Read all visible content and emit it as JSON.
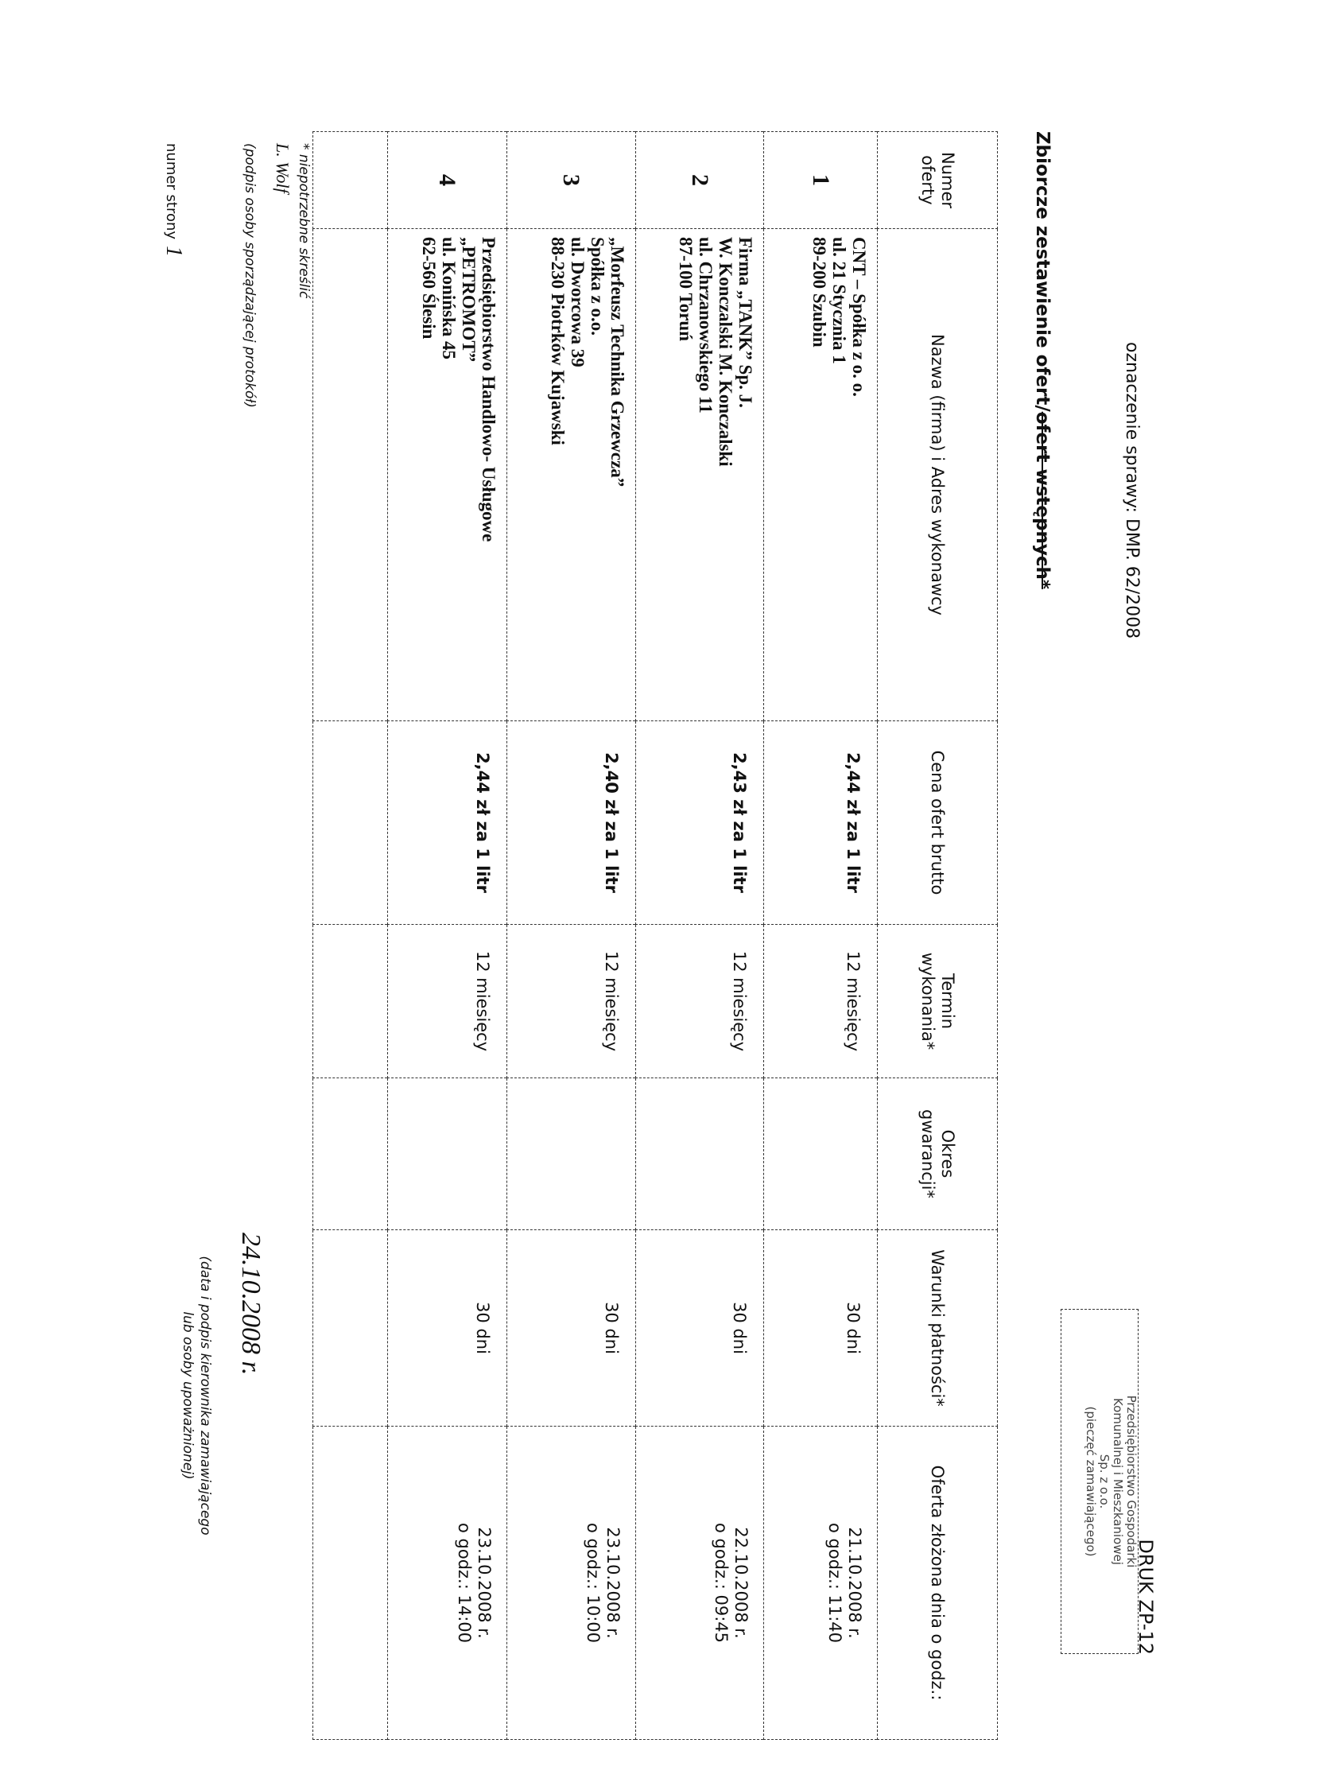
{
  "header": {
    "case_label": "oznaczenie sprawy: DMP. 62/2008",
    "title_main": "Zbiorcze zestawienie ofert/",
    "title_struck": "ofert wstępnych*",
    "stamp": {
      "form": "DRUK ZP-12",
      "line1": "Przedsiębiorstwo Gospodarki",
      "line2": "Komunalnej i Mieszkaniowej",
      "line3": "Sp. z o.o.",
      "line4": "(pieczęć zamawiającego)"
    }
  },
  "table": {
    "headers": [
      "Numer oferty",
      "Nazwa (firma) i Adres wykonawcy",
      "Cena ofert brutto",
      "Termin wykonania*",
      "Okres gwarancji*",
      "Warunki płatności*",
      "Oferta złożona dnia o godz.:"
    ],
    "rows": [
      {
        "num": "1",
        "name": [
          "CNT – Spółka z o. o.",
          "ul. 21 Stycznia 1",
          "89-200 Szubin"
        ],
        "price": "2,44 zł za 1 litr",
        "term": "12 miesięcy",
        "warranty": "",
        "payment": "30 dni",
        "date": "21.10.2008 r.",
        "time": "o godz.: 11:40"
      },
      {
        "num": "2",
        "name": [
          "Firma „TANK” Sp. J.",
          "W. Konczalski M. Konczalski",
          "ul. Chrzanowskiego 11",
          "87-100 Toruń"
        ],
        "price": "2,43 zł za 1 litr",
        "term": "12 miesięcy",
        "warranty": "",
        "payment": "30 dni",
        "date": "22.10.2008 r.",
        "time": "o godz.: 09:45"
      },
      {
        "num": "3",
        "name": [
          "„Morfeusz Technika Grzewcza”",
          "Spółka z o.o.",
          "ul. Dworcowa 39",
          "88-230 Piotrków Kujawski"
        ],
        "price": "2,40 zł za 1 litr",
        "term": "12 miesięcy",
        "warranty": "",
        "payment": "30 dni",
        "date": "23.10.2008 r.",
        "time": "o godz.: 10:00"
      },
      {
        "num": "4",
        "name": [
          "Przedsiębiorstwo Handlowo- Usługowe",
          "„PETROMOT”",
          "ul. Konińska 45",
          "62-560 Ślesin"
        ],
        "price": "2,44 zł za 1 litr",
        "term": "12 miesięcy",
        "warranty": "",
        "payment": "30 dni",
        "date": "23.10.2008 r.",
        "time": "o godz.: 14:00"
      }
    ]
  },
  "footer": {
    "footnote": "* niepotrzebne skreślić",
    "signer": "L. Wolf",
    "signer_caption": "(podpis osoby sporządzającej protokół)",
    "page_label": "numer strony",
    "page_number": "1",
    "date_signature": "24.10.2008 r.",
    "approver_caption_1": "(data i podpis kierownika zamawiającego",
    "approver_caption_2": "lub osoby upoważnionej)"
  }
}
